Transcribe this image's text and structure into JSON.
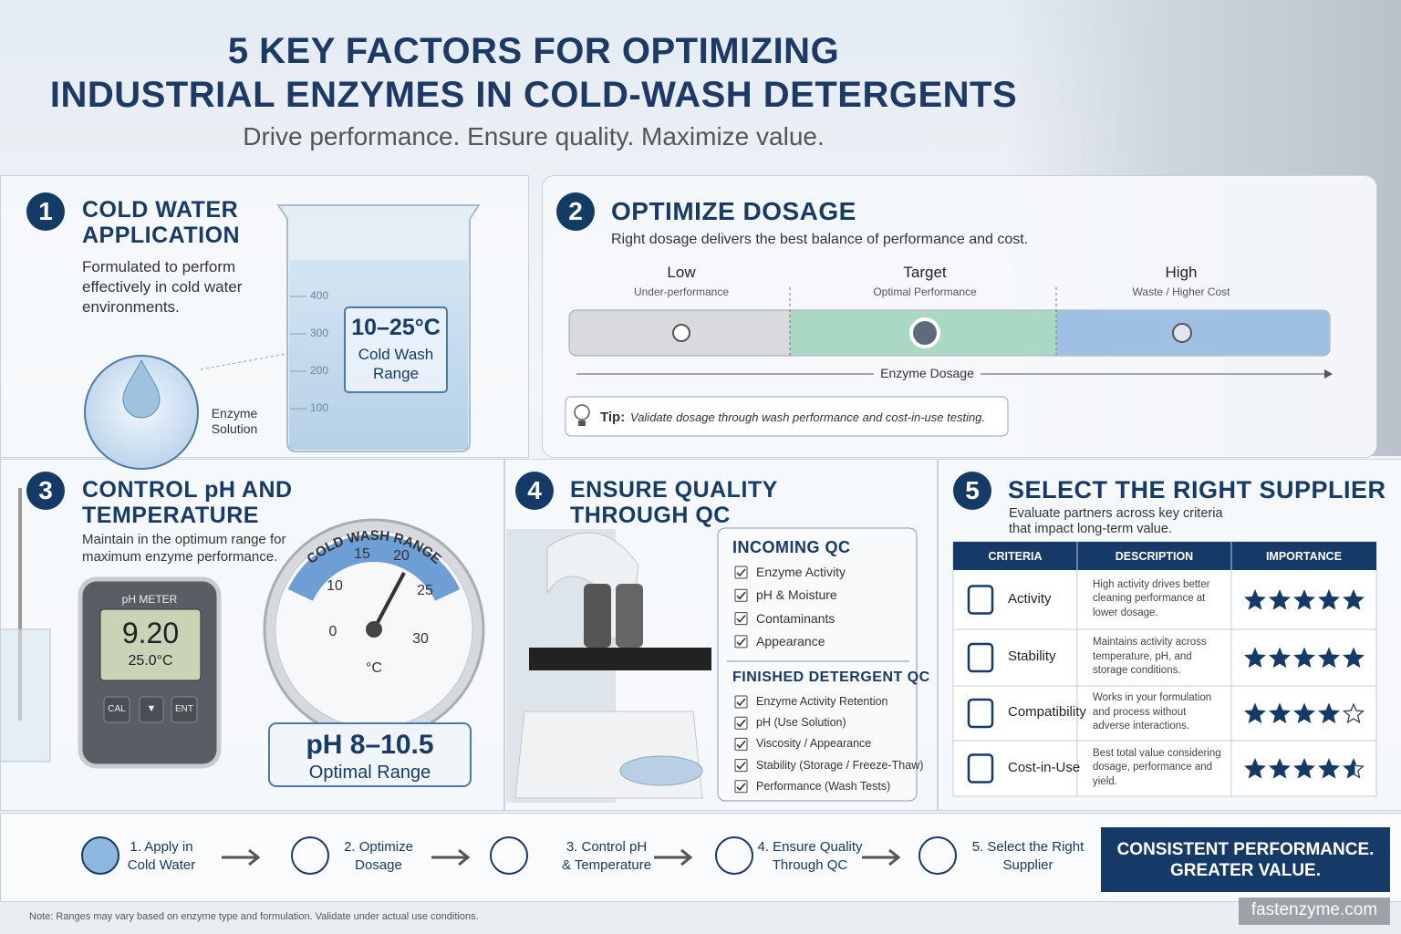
{
  "header": {
    "title": [
      "5 KEY FACTORS FOR OPTIMIZING",
      "INDUSTRIAL ENZYMES IN COLD-WASH DETERGENTS"
    ],
    "subtitle": "Drive performance. Ensure quality. Maximize value."
  },
  "s1": {
    "number": "1",
    "title": [
      "COLD WATER",
      "APPLICATION"
    ],
    "text": "Formulated to perform effectively in cold water environments.",
    "drop_label": "Enzyme Solution",
    "beaker_marks": [
      "400",
      "300",
      "200",
      "100"
    ],
    "range": "10–25°C",
    "range_label": "Cold Wash Range"
  },
  "s2": {
    "number": "2",
    "title": "OPTIMIZE DOSAGE",
    "text": "Right dosage delivers the best balance of performance and cost.",
    "levels": [
      {
        "name": "Low",
        "desc": "Under-performance"
      },
      {
        "name": "Target",
        "desc": "Optimal Performance"
      },
      {
        "name": "High",
        "desc": "Waste / Higher Cost"
      }
    ],
    "axis": "Enzyme Dosage",
    "tip_label": "Tip:",
    "tip": "Validate dosage through wash performance and cost-in-use testing."
  },
  "s3": {
    "number": "3",
    "title": [
      "CONTROL pH AND",
      "TEMPERATURE"
    ],
    "text": "Maintain in the optimum range for maximum enzyme performance.",
    "meter": {
      "label": "pH METER",
      "reading": "9.20",
      "temp": "25.0°C",
      "buttons": [
        "CAL",
        "▼",
        "ENT"
      ]
    },
    "gauge": {
      "arc": "COLD WASH RANGE",
      "ticks": [
        "0",
        "10",
        "15",
        "20",
        "25",
        "30"
      ],
      "unit": "°C"
    },
    "ph": "pH 8–10.5",
    "ph_label": "Optimal Range"
  },
  "s4": {
    "number": "4",
    "title": [
      "ENSURE QUALITY",
      "THROUGH QC"
    ],
    "incoming": {
      "heading": "INCOMING QC",
      "items": [
        "Enzyme Activity",
        "pH & Moisture",
        "Contaminants",
        "Appearance"
      ]
    },
    "finished": {
      "heading": "FINISHED DETERGENT QC",
      "items": [
        "Enzyme Activity Retention",
        "pH (Use Solution)",
        "Viscosity / Appearance",
        "Stability (Storage / Freeze-Thaw)",
        "Performance (Wash Tests)"
      ]
    }
  },
  "s5": {
    "number": "5",
    "title": "SELECT THE RIGHT SUPPLIER",
    "text": "Evaluate partners across key criteria that impact long-term value.",
    "table": {
      "headers": [
        "CRITERIA",
        "DESCRIPTION",
        "IMPORTANCE"
      ],
      "rows": [
        {
          "criterion": "Activity",
          "description": "High activity drives better cleaning performance at lower dosage.",
          "importance": 5
        },
        {
          "criterion": "Stability",
          "description": "Maintains activity across temperature, pH, and storage conditions.",
          "importance": 5
        },
        {
          "criterion": "Compatibility",
          "description": "Works in your formulation and process without adverse interactions.",
          "importance": 4
        },
        {
          "criterion": "Cost-in-Use",
          "description": "Best total value considering dosage, performance and yield.",
          "importance": 4.5
        }
      ]
    }
  },
  "flow": [
    [
      "1. Apply in",
      "Cold Water"
    ],
    [
      "2. Optimize",
      "Dosage"
    ],
    [
      "3. Control pH",
      "& Temperature"
    ],
    [
      "4. Ensure Quality",
      "Through QC"
    ],
    [
      "5. Select the Right",
      "Supplier"
    ]
  ],
  "cta": [
    "CONSISTENT PERFORMANCE.",
    "GREATER VALUE."
  ],
  "note": {
    "label": "Note:",
    "text": "Ranges may vary based on enzyme type and formulation. Validate under actual use conditions."
  },
  "watermark": "fastenzyme.com"
}
